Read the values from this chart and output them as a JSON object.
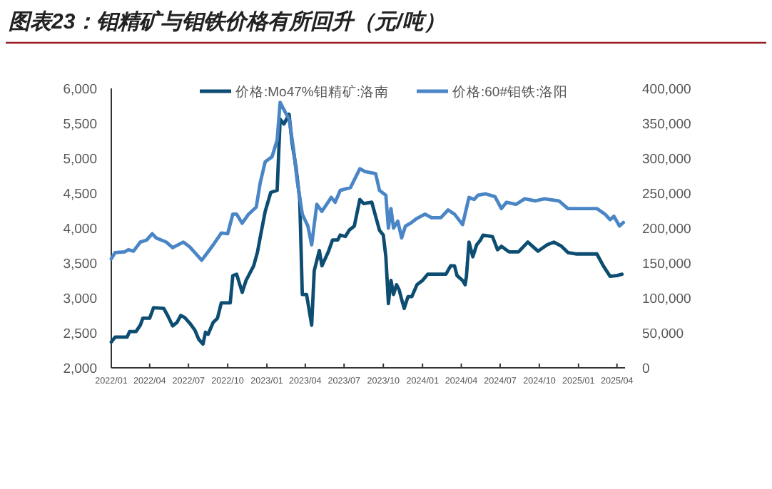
{
  "chart_data": {
    "type": "line",
    "title": "图表23：钼精矿与钼铁价格有所回升（元/吨）",
    "xlim": [
      "2022-01-01",
      "2025-04-20"
    ],
    "xticks": [
      {
        "value": "2022-01",
        "label": "2022/01"
      },
      {
        "value": "2022-04",
        "label": "2022/04"
      },
      {
        "value": "2022-07",
        "label": "2022/07"
      },
      {
        "value": "2022-10",
        "label": "2022/10"
      },
      {
        "value": "2023-01",
        "label": "2023/01"
      },
      {
        "value": "2023-04",
        "label": "2023/04"
      },
      {
        "value": "2023-07",
        "label": "2023/07"
      },
      {
        "value": "2023-10",
        "label": "2023/10"
      },
      {
        "value": "2024-01",
        "label": "2024/01"
      },
      {
        "value": "2024-04",
        "label": "2024/04"
      },
      {
        "value": "2024-07",
        "label": "2024/07"
      },
      {
        "value": "2024-10",
        "label": "2024/10"
      },
      {
        "value": "2025-01",
        "label": "2025/01"
      },
      {
        "value": "2025-04",
        "label": "2025/04"
      }
    ],
    "ylim": [
      2000,
      6000
    ],
    "yticks": [
      {
        "value": 2000,
        "label": "2,000"
      },
      {
        "value": 2500,
        "label": "2,500"
      },
      {
        "value": 3000,
        "label": "3,000"
      },
      {
        "value": 3500,
        "label": "3,500"
      },
      {
        "value": 4000,
        "label": "4,000"
      },
      {
        "value": 4500,
        "label": "4,500"
      },
      {
        "value": 5000,
        "label": "5,000"
      },
      {
        "value": 5500,
        "label": "5,500"
      },
      {
        "value": 6000,
        "label": "6,000"
      }
    ],
    "y2lim": [
      0,
      400000
    ],
    "y2ticks": [
      0,
      {
        "value": 50000,
        "label": "50,000"
      },
      {
        "value": 100000,
        "label": "100,000"
      },
      {
        "value": 150000,
        "label": "150,000"
      },
      {
        "value": 200000,
        "label": "200,000"
      },
      {
        "value": 250000,
        "label": "250,000"
      },
      {
        "value": 300000,
        "label": "300,000"
      },
      {
        "value": 350000,
        "label": "350,000"
      },
      {
        "value": 400000,
        "label": "400,000"
      }
    ],
    "grid": false,
    "legend": "top",
    "series": [
      {
        "name": "价格:Mo47%钼精矿:洛南",
        "color": "#0d4d72",
        "x": [
          "2022-01-01",
          "2022-01-10",
          "2022-02-07",
          "2022-02-13",
          "2022-02-28",
          "2022-03-10",
          "2022-03-16",
          "2022-04-01",
          "2022-04-10",
          "2022-05-04",
          "2022-05-13",
          "2022-05-25",
          "2022-06-04",
          "2022-06-13",
          "2022-06-22",
          "2022-07-04",
          "2022-07-16",
          "2022-07-25",
          "2022-08-04",
          "2022-08-10",
          "2022-08-16",
          "2022-08-28",
          "2022-09-07",
          "2022-09-16",
          "2022-10-07",
          "2022-10-13",
          "2022-10-22",
          "2022-11-04",
          "2022-11-13",
          "2022-12-01",
          "2022-12-10",
          "2022-12-16",
          "2022-12-28",
          "2023-01-10",
          "2023-01-25",
          "2023-02-01",
          "2023-02-10",
          "2023-02-22",
          "2023-03-01",
          "2023-03-10",
          "2023-03-19",
          "2023-03-25",
          "2023-04-04",
          "2023-04-16",
          "2023-04-22",
          "2023-05-04",
          "2023-05-10",
          "2023-05-25",
          "2023-06-04",
          "2023-06-16",
          "2023-06-22",
          "2023-07-04",
          "2023-07-13",
          "2023-07-25",
          "2023-08-07",
          "2023-08-16",
          "2023-09-04",
          "2023-09-13",
          "2023-09-22",
          "2023-10-01",
          "2023-10-07",
          "2023-10-13",
          "2023-10-19",
          "2023-10-25",
          "2023-11-01",
          "2023-11-07",
          "2023-11-13",
          "2023-11-19",
          "2023-11-28",
          "2023-12-07",
          "2023-12-19",
          "2024-01-01",
          "2024-01-13",
          "2024-02-25",
          "2024-03-07",
          "2024-03-16",
          "2024-03-22",
          "2024-04-04",
          "2024-04-10",
          "2024-04-13",
          "2024-04-19",
          "2024-04-28",
          "2024-05-07",
          "2024-05-16",
          "2024-05-22",
          "2024-06-13",
          "2024-06-25",
          "2024-07-04",
          "2024-07-22",
          "2024-08-13",
          "2024-09-04",
          "2024-09-28",
          "2024-10-19",
          "2024-11-04",
          "2024-11-22",
          "2024-12-07",
          "2024-12-28",
          "2025-02-13",
          "2025-02-28",
          "2025-03-16",
          "2025-04-01",
          "2025-04-13"
        ],
        "values": [
          2370,
          2440,
          2440,
          2520,
          2520,
          2610,
          2710,
          2710,
          2860,
          2850,
          2750,
          2600,
          2650,
          2750,
          2720,
          2640,
          2540,
          2410,
          2340,
          2510,
          2480,
          2650,
          2710,
          2930,
          2930,
          3320,
          3340,
          3080,
          3250,
          3460,
          3660,
          3860,
          4240,
          4510,
          4540,
          5560,
          5490,
          5630,
          5220,
          4880,
          4410,
          3050,
          3050,
          2610,
          3390,
          3680,
          3460,
          3660,
          3830,
          3830,
          3900,
          3880,
          3970,
          4030,
          4410,
          4350,
          4370,
          4170,
          3970,
          3900,
          3590,
          2920,
          3250,
          3050,
          3190,
          3120,
          2980,
          2850,
          3020,
          3020,
          3190,
          3250,
          3340,
          3340,
          3460,
          3460,
          3320,
          3250,
          3190,
          3310,
          3800,
          3590,
          3760,
          3830,
          3900,
          3880,
          3690,
          3740,
          3660,
          3660,
          3800,
          3670,
          3760,
          3800,
          3740,
          3650,
          3630,
          3630,
          3460,
          3310,
          3320,
          3340
        ]
      },
      {
        "name": "价格:60#钼铁:洛阳",
        "color": "#4a86c6",
        "axis": "y2",
        "x": [
          "2022-01-01",
          "2022-01-10",
          "2022-02-01",
          "2022-02-10",
          "2022-02-22",
          "2022-03-10",
          "2022-03-25",
          "2022-04-07",
          "2022-04-16",
          "2022-05-10",
          "2022-05-25",
          "2022-06-19",
          "2022-07-04",
          "2022-07-19",
          "2022-08-01",
          "2022-08-16",
          "2022-08-28",
          "2022-09-16",
          "2022-10-01",
          "2022-10-13",
          "2022-10-22",
          "2022-11-04",
          "2022-11-19",
          "2022-12-07",
          "2022-12-16",
          "2022-12-28",
          "2023-01-13",
          "2023-01-25",
          "2023-02-01",
          "2023-02-13",
          "2023-02-22",
          "2023-03-04",
          "2023-03-13",
          "2023-03-25",
          "2023-04-07",
          "2023-04-16",
          "2023-04-28",
          "2023-05-10",
          "2023-06-01",
          "2023-06-10",
          "2023-06-22",
          "2023-07-16",
          "2023-08-07",
          "2023-08-19",
          "2023-09-13",
          "2023-09-22",
          "2023-10-07",
          "2023-10-13",
          "2023-10-19",
          "2023-10-25",
          "2023-11-04",
          "2023-11-13",
          "2023-11-22",
          "2023-12-04",
          "2023-12-19",
          "2024-01-07",
          "2024-01-22",
          "2024-02-13",
          "2024-03-01",
          "2024-03-16",
          "2024-04-04",
          "2024-04-19",
          "2024-05-01",
          "2024-05-10",
          "2024-05-28",
          "2024-06-19",
          "2024-07-04",
          "2024-07-16",
          "2024-08-07",
          "2024-08-28",
          "2024-09-22",
          "2024-10-13",
          "2024-11-16",
          "2024-12-07",
          "2025-02-13",
          "2025-03-04",
          "2025-03-16",
          "2025-03-25",
          "2025-04-07",
          "2025-04-16"
        ],
        "values": [
          156000,
          165000,
          166000,
          169000,
          167000,
          180000,
          183000,
          192000,
          186000,
          180000,
          172000,
          180000,
          173000,
          163000,
          154000,
          166000,
          176000,
          193000,
          192000,
          220000,
          220000,
          207000,
          220000,
          230000,
          264000,
          295000,
          302000,
          326000,
          380000,
          366000,
          356000,
          315000,
          268000,
          220000,
          203000,
          176000,
          234000,
          224000,
          244000,
          237000,
          254000,
          258000,
          285000,
          281000,
          278000,
          254000,
          247000,
          200000,
          228000,
          200000,
          210000,
          186000,
          203000,
          207000,
          214000,
          220000,
          215000,
          215000,
          226000,
          220000,
          205000,
          244000,
          241000,
          247000,
          249000,
          245000,
          228000,
          237000,
          234000,
          242000,
          239000,
          242000,
          239000,
          228000,
          228000,
          220000,
          212000,
          217000,
          203000,
          208000
        ]
      }
    ]
  }
}
